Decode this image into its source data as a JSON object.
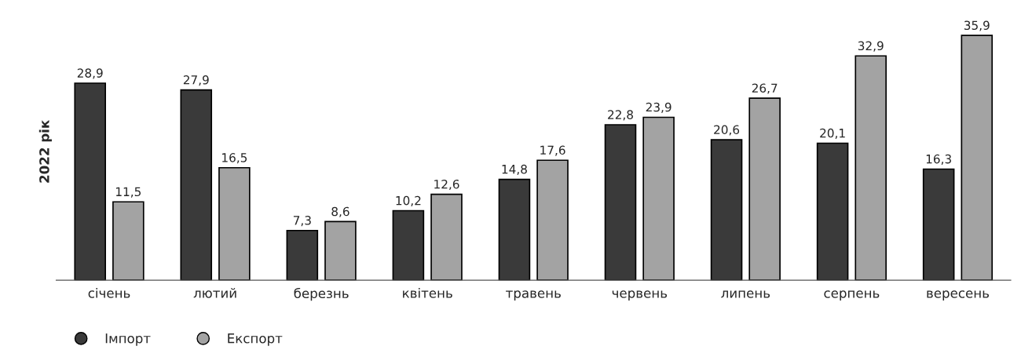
{
  "chart_data": {
    "type": "bar",
    "ylabel": "2022 рік",
    "categories": [
      "січень",
      "лютий",
      "березнь",
      "квітень",
      "травень",
      "червень",
      "липень",
      "серпень",
      "вересень"
    ],
    "series": [
      {
        "name": "Імпорт",
        "color": "#3a3a3a",
        "values": [
          28.9,
          27.9,
          7.3,
          10.2,
          14.8,
          22.8,
          20.6,
          20.1,
          16.3
        ],
        "value_labels": [
          "28,9",
          "27,9",
          "7,3",
          "10,2",
          "14,8",
          "22,8",
          "20,6",
          "20,1",
          "16,3"
        ]
      },
      {
        "name": "Експорт",
        "color": "#a3a3a3",
        "values": [
          11.5,
          16.5,
          8.6,
          12.6,
          17.6,
          23.9,
          26.7,
          32.9,
          35.9
        ],
        "value_labels": [
          "11,5",
          "16,5",
          "8,6",
          "12,6",
          "17,6",
          "23,9",
          "26,7",
          "32,9",
          "35,9"
        ]
      }
    ],
    "legend": "bottom left",
    "grid": false,
    "tick_labels": "x"
  }
}
